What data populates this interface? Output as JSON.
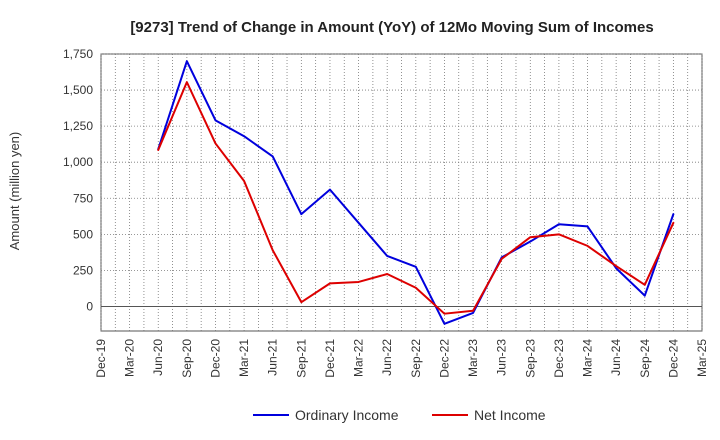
{
  "chart_data": {
    "type": "line",
    "title": "[9273]  Trend of Change in Amount (YoY) of 12Mo Moving Sum of Incomes",
    "xlabel": "",
    "ylabel": "Amount (million yen)",
    "ylim": [
      -170,
      1750
    ],
    "yticks": [
      0,
      250,
      500,
      750,
      1000,
      1250,
      1500,
      1750
    ],
    "ytick_labels": [
      "0",
      "250",
      "500",
      "750",
      "1,000",
      "1,250",
      "1,500",
      "1,750"
    ],
    "categories": [
      "Dec-19",
      "Mar-20",
      "Jun-20",
      "Sep-20",
      "Dec-20",
      "Mar-21",
      "Jun-21",
      "Sep-21",
      "Dec-21",
      "Mar-22",
      "Jun-22",
      "Sep-22",
      "Dec-22",
      "Mar-23",
      "Jun-23",
      "Sep-23",
      "Dec-23",
      "Mar-24",
      "Jun-24",
      "Sep-24",
      "Dec-24",
      "Mar-25"
    ],
    "grid": true,
    "legend_position": "bottom",
    "series": [
      {
        "name": "Ordinary Income",
        "color": "#0000dd",
        "values": [
          null,
          null,
          1090,
          1700,
          1290,
          1180,
          1040,
          640,
          810,
          580,
          350,
          275,
          -120,
          -45,
          340,
          450,
          570,
          555,
          265,
          75,
          640,
          null
        ]
      },
      {
        "name": "Net Income",
        "color": "#dd0000",
        "values": [
          null,
          null,
          1085,
          1555,
          1130,
          870,
          390,
          30,
          160,
          170,
          225,
          130,
          -50,
          -30,
          330,
          480,
          500,
          420,
          280,
          150,
          580,
          null
        ]
      }
    ]
  }
}
